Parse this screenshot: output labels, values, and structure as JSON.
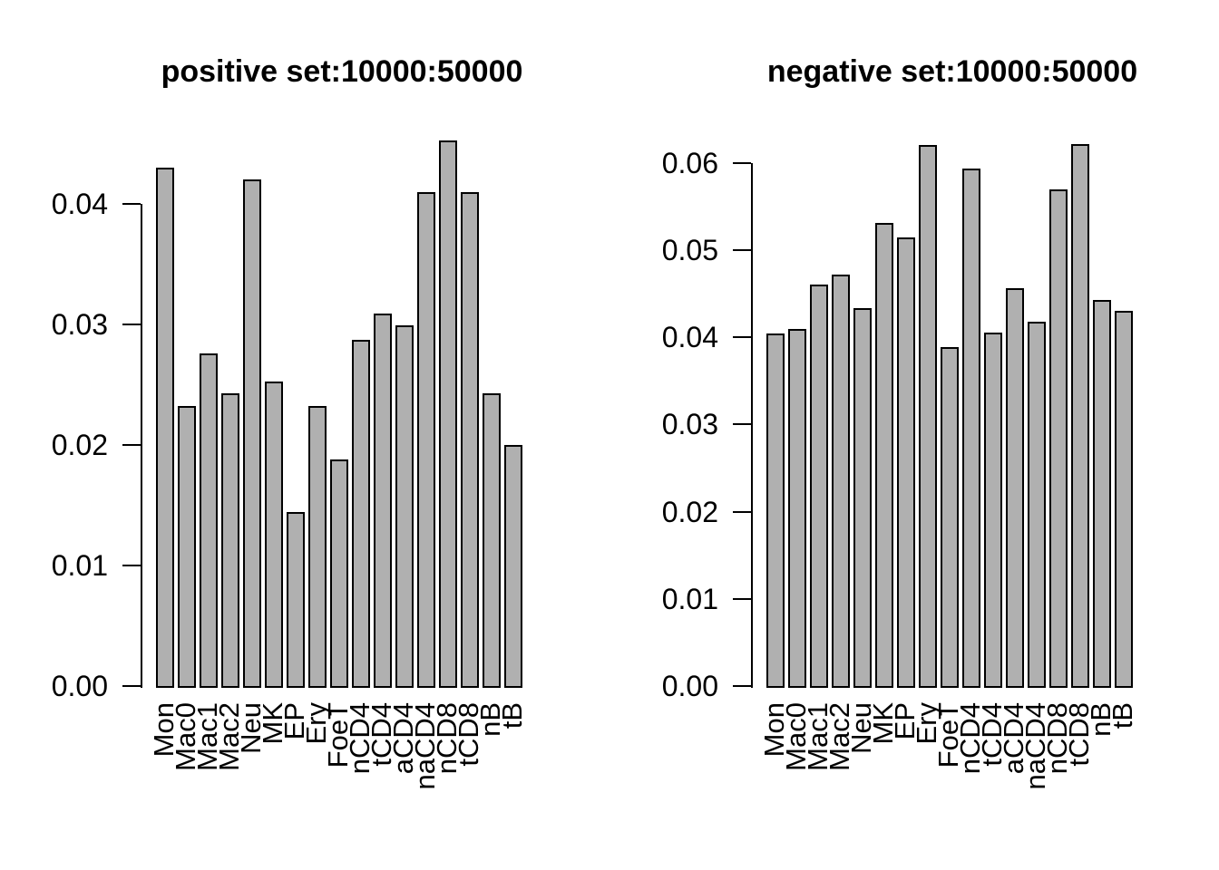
{
  "figure": {
    "background_color": "#ffffff",
    "text_color": "#000000"
  },
  "chart_data": [
    {
      "type": "bar",
      "title": "positive set:10000:50000",
      "xlabel": "",
      "ylabel": "",
      "categories": [
        "Mon",
        "Mac0",
        "Mac1",
        "Mac2",
        "Neu",
        "MK",
        "EP",
        "Ery",
        "FoeT",
        "nCD4",
        "tCD4",
        "aCD4",
        "naCD4",
        "nCD8",
        "tCD8",
        "nB",
        "tB"
      ],
      "values": [
        0.043,
        0.0232,
        0.0276,
        0.0243,
        0.042,
        0.0253,
        0.0144,
        0.0232,
        0.0188,
        0.0287,
        0.0309,
        0.0299,
        0.041,
        0.0453,
        0.041,
        0.0243,
        0.02
      ],
      "y_tick_labels": [
        "0.00",
        "0.01",
        "0.02",
        "0.03",
        "0.04"
      ],
      "y_tick_step": 0.01,
      "ylim": [
        0,
        0.0455
      ],
      "grid": false,
      "legend": false,
      "bar_color": "#b0b0b0",
      "bar_border_color": "#000000"
    },
    {
      "type": "bar",
      "title": "negative set:10000:50000",
      "xlabel": "",
      "ylabel": "",
      "categories": [
        "Mon",
        "Mac0",
        "Mac1",
        "Mac2",
        "Neu",
        "MK",
        "EP",
        "Ery",
        "FoeT",
        "nCD4",
        "tCD4",
        "aCD4",
        "naCD4",
        "nCD8",
        "tCD8",
        "nB",
        "tB"
      ],
      "values": [
        0.0404,
        0.041,
        0.0461,
        0.0472,
        0.0434,
        0.0531,
        0.0515,
        0.0621,
        0.0389,
        0.0594,
        0.0406,
        0.0456,
        0.0418,
        0.057,
        0.0622,
        0.0443,
        0.0431
      ],
      "y_tick_labels": [
        "0.00",
        "0.01",
        "0.02",
        "0.03",
        "0.04",
        "0.05",
        "0.06"
      ],
      "y_tick_step": 0.01,
      "ylim": [
        0,
        0.0625
      ],
      "grid": false,
      "legend": false,
      "bar_color": "#b0b0b0",
      "bar_border_color": "#000000"
    }
  ]
}
